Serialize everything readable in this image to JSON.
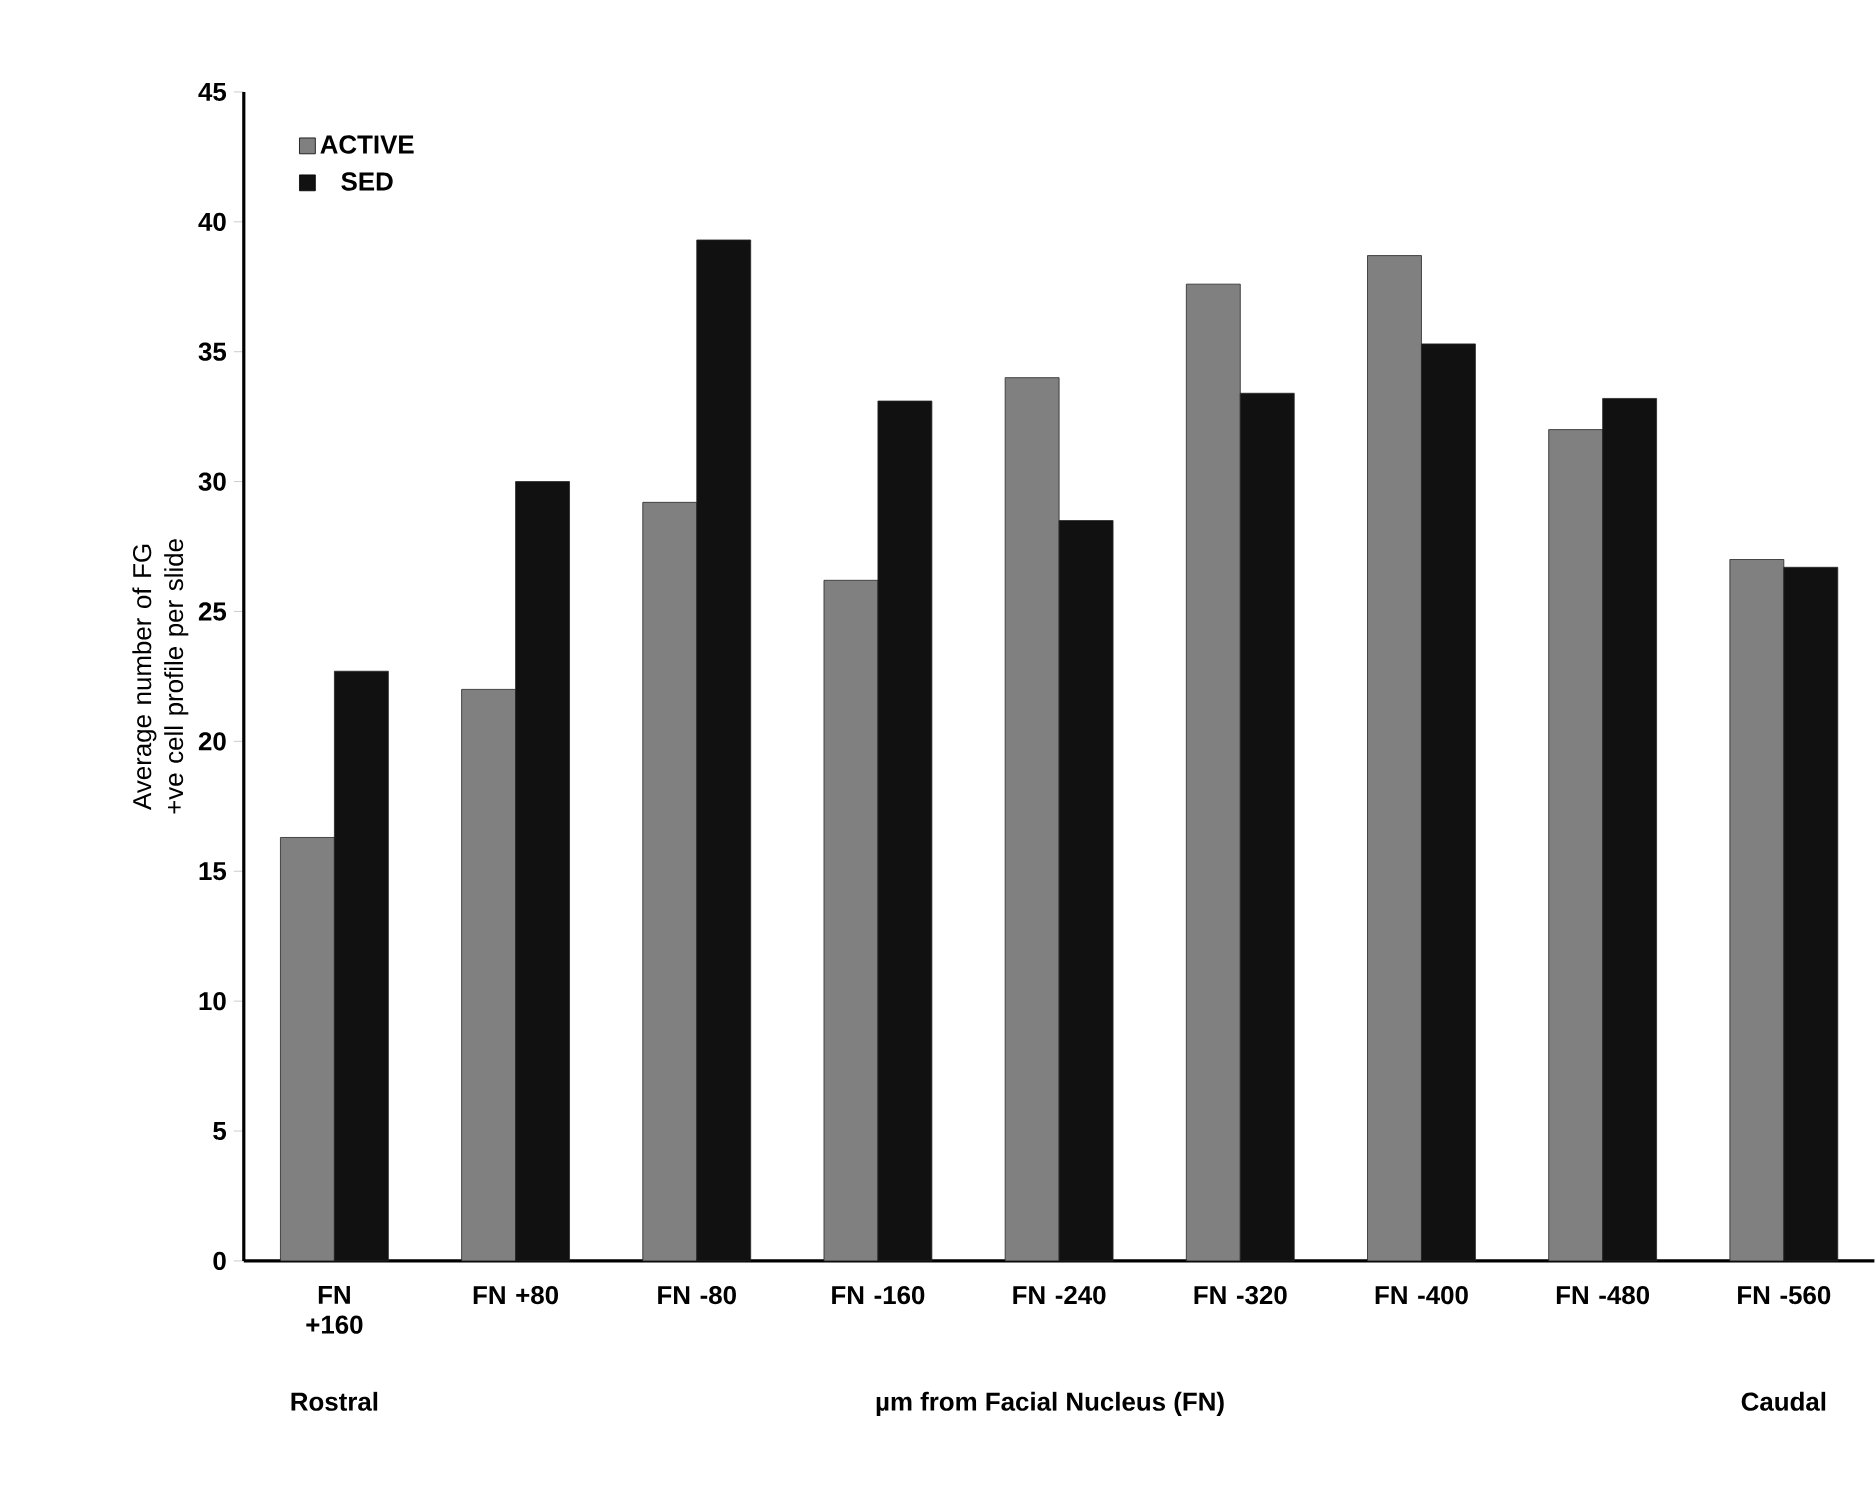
{
  "chart_data": {
    "type": "bar",
    "categories": [
      "FN +160",
      "FN +80",
      "FN -80",
      "FN -160",
      "FN -240",
      "FN -320",
      "FN -400",
      "FN -480",
      "FN -560"
    ],
    "series": [
      {
        "name": "ACTIVE",
        "color": "#808080",
        "values": [
          16.3,
          22.0,
          29.2,
          26.2,
          34.0,
          37.6,
          38.7,
          32.0,
          27.0
        ]
      },
      {
        "name": "SED",
        "color": "#111111",
        "values": [
          22.7,
          30.0,
          39.3,
          33.1,
          28.5,
          33.4,
          35.3,
          33.2,
          26.7
        ]
      }
    ],
    "xlabel": "µm from Facial Nucleus (FN)",
    "ylabel": "Average number of  FG +ve cell profile per slide",
    "annotations": [
      "Rostral",
      "Caudal"
    ],
    "ylim": [
      0,
      45
    ],
    "yticks": [
      0,
      5,
      10,
      15,
      20,
      25,
      30,
      35,
      40,
      45
    ],
    "legend": "top left",
    "grid": false
  }
}
